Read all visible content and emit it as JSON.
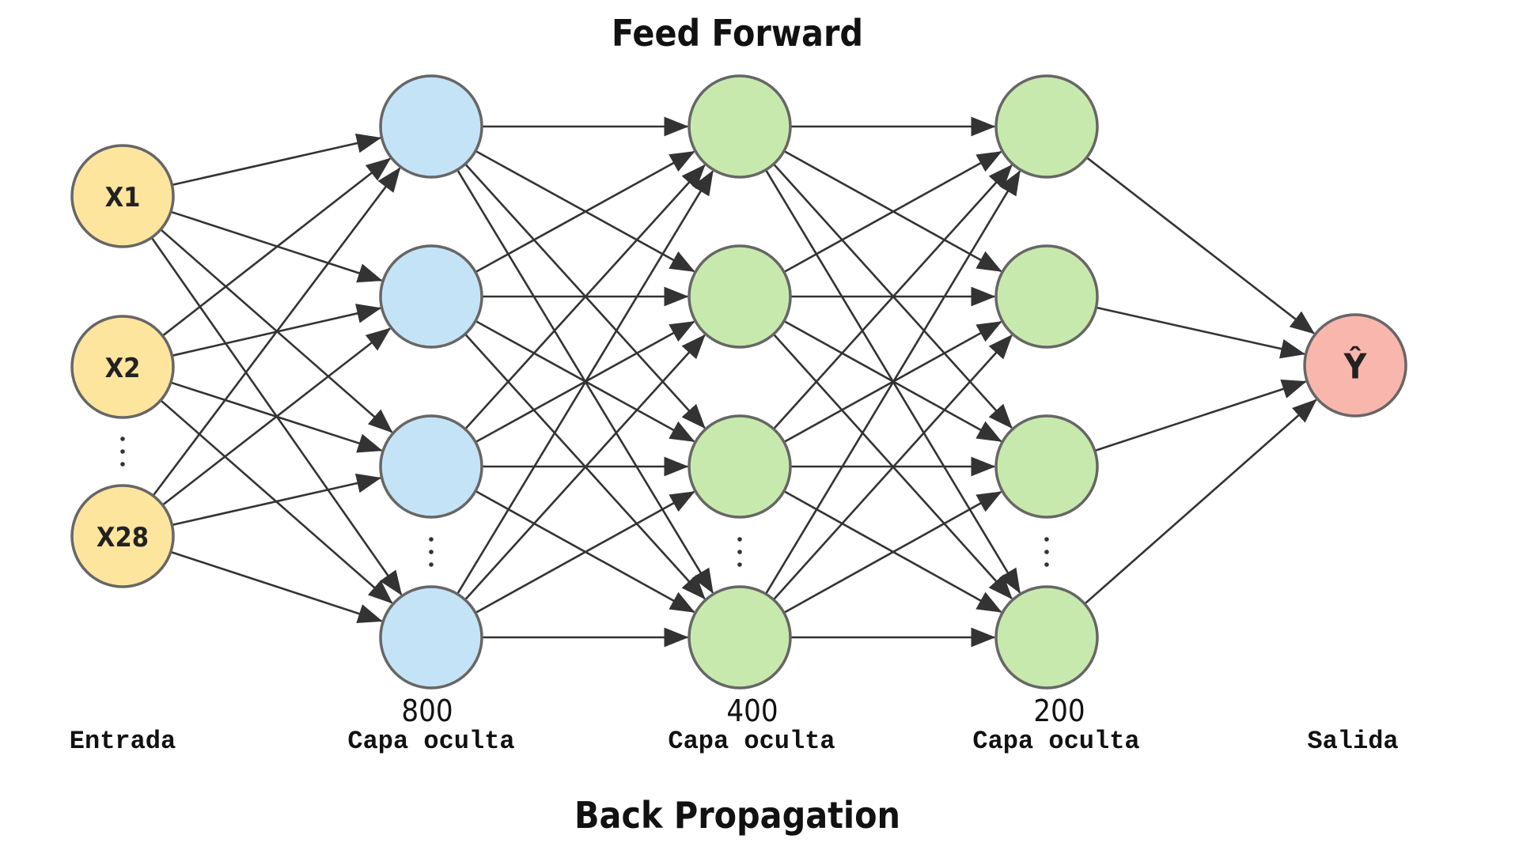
{
  "diagram": {
    "top_title": "Feed Forward",
    "bottom_title": "Back Propagation",
    "colors": {
      "input": "#fde59e",
      "hidden_1": "#c5e3f6",
      "hidden_2": "#c8e9ad",
      "hidden_3": "#c8e9ad",
      "output": "#f9b6ad",
      "edge": "#333333",
      "node_border": "#666666"
    },
    "layers": [
      {
        "id": "input",
        "count": "",
        "label": "Entrada",
        "nodes": [
          "X1",
          "X2",
          "X28"
        ],
        "ellipsis_after": 1
      },
      {
        "id": "hidden_1",
        "count": "800",
        "label": "Capa oculta",
        "nodes": [
          "",
          "",
          "",
          ""
        ],
        "ellipsis_after": 2
      },
      {
        "id": "hidden_2",
        "count": "400",
        "label": "Capa oculta",
        "nodes": [
          "",
          "",
          "",
          ""
        ],
        "ellipsis_after": 2
      },
      {
        "id": "hidden_3",
        "count": "200",
        "label": "Capa oculta",
        "nodes": [
          "",
          "",
          "",
          ""
        ],
        "ellipsis_after": 2
      },
      {
        "id": "output",
        "count": "",
        "label": "Salida",
        "nodes": [
          "Ŷ"
        ],
        "ellipsis_after": -1
      }
    ]
  }
}
